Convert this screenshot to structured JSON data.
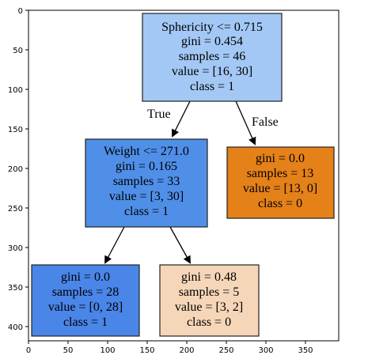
{
  "axes": {
    "x_ticks": [
      "0",
      "50",
      "100",
      "150",
      "200",
      "250",
      "300",
      "350"
    ],
    "y_ticks": [
      "0",
      "50",
      "100",
      "150",
      "200",
      "250",
      "300",
      "350",
      "400"
    ]
  },
  "tree": {
    "nodes": [
      {
        "id": "root",
        "lines": [
          "Sphericity <= 0.715",
          "gini = 0.454",
          "samples = 46",
          "value = [16, 30]",
          "class = 1"
        ],
        "fill": "#a3c8f5"
      },
      {
        "id": "left",
        "lines": [
          "Weight <= 271.0",
          "gini = 0.165",
          "samples = 33",
          "value = [3, 30]",
          "class = 1"
        ],
        "fill": "#4f8fe8"
      },
      {
        "id": "right",
        "lines": [
          "gini = 0.0",
          "samples = 13",
          "value = [13, 0]",
          "class = 0"
        ],
        "fill": "#e58119"
      },
      {
        "id": "left-left",
        "lines": [
          "gini = 0.0",
          "samples = 28",
          "value = [0, 28]",
          "class = 1"
        ],
        "fill": "#4a85e8"
      },
      {
        "id": "left-right",
        "lines": [
          "gini = 0.48",
          "samples = 5",
          "value = [3, 2]",
          "class = 0"
        ],
        "fill": "#f6d6b8"
      }
    ],
    "edge_labels": {
      "true_label": "True",
      "false_label": "False"
    }
  },
  "colors": {
    "edge": "#000000",
    "border": "#222222"
  }
}
